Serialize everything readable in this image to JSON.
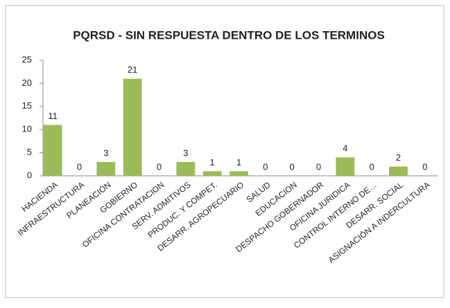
{
  "chart_data": {
    "type": "bar",
    "title": "PQRSD - SIN RESPUESTA DENTRO DE LOS TERMINOS",
    "categories": [
      "HACIENDA",
      "INFRAESTRUCTURA",
      "PLANEACIÓN",
      "GOBIERNO",
      "OFICINA CONTRATACION",
      "SERV. ADMITIVOS",
      "PRODUC. Y COMPET.",
      "DESARR. AGROPECUARIO",
      "SALUD",
      "EDUCACION",
      "DESPACHO GOBERNADOR",
      "OFICINA JURIDICA",
      "CONTROL INTERNO DE…",
      "DESARR. SOCIAL",
      "ASIGNACIÓN A INDERCULTURA"
    ],
    "values": [
      11,
      0,
      3,
      21,
      0,
      3,
      1,
      1,
      0,
      0,
      0,
      4,
      0,
      2,
      0
    ],
    "color": "#9bbb59",
    "ylim": [
      0,
      25
    ],
    "yticks": [
      0,
      5,
      10,
      15,
      20,
      25
    ],
    "grid": false
  }
}
